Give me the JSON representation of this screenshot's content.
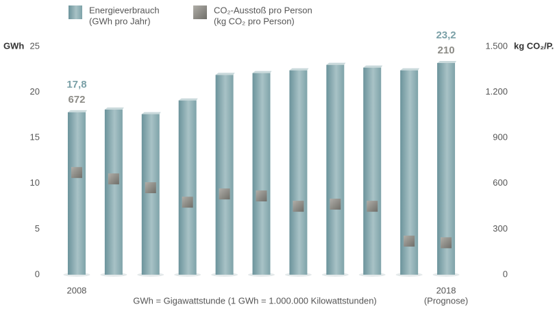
{
  "chart_data": {
    "type": "bar",
    "categories": [
      "2008",
      null,
      null,
      null,
      null,
      null,
      null,
      null,
      null,
      null,
      "2018"
    ],
    "category_note": "(Prognose)",
    "series": [
      {
        "name": "Energieverbrauch",
        "legend_sub": "(GWh pro Jahr)",
        "color": "#7aa0a7",
        "values": [
          17.8,
          18.1,
          17.6,
          19.1,
          21.9,
          22.1,
          22.4,
          23.0,
          22.7,
          22.4,
          23.2
        ],
        "value_labels": [
          "17,8",
          null,
          null,
          null,
          null,
          null,
          null,
          null,
          null,
          null,
          "23,2"
        ]
      },
      {
        "name": "CO₂-Ausstoß pro Person",
        "legend_sub": "(kg CO₂ pro Person)",
        "color": "#8c8b86",
        "axis": "y2",
        "marker": "square",
        "values": [
          672,
          630,
          572,
          477,
          531,
          518,
          450,
          464,
          450,
          221,
          210
        ],
        "value_labels": [
          "672",
          null,
          null,
          null,
          null,
          null,
          null,
          null,
          null,
          null,
          "210"
        ]
      }
    ],
    "ylabel": "GWh",
    "y2label": "kg CO₂/P.",
    "ylim": [
      0,
      25
    ],
    "yticks": [
      0,
      5,
      10,
      15,
      20,
      25
    ],
    "y2lim": [
      0,
      1500
    ],
    "y2ticks": [
      0,
      300,
      600,
      900,
      {
        "value": 1200,
        "label": "1.200"
      },
      {
        "value": 1500,
        "label": "1.500"
      }
    ],
    "footnote": "GWh = Gigawattstunde (1 GWh = 1.000.000 Kilowattstunden)",
    "grid": false
  }
}
